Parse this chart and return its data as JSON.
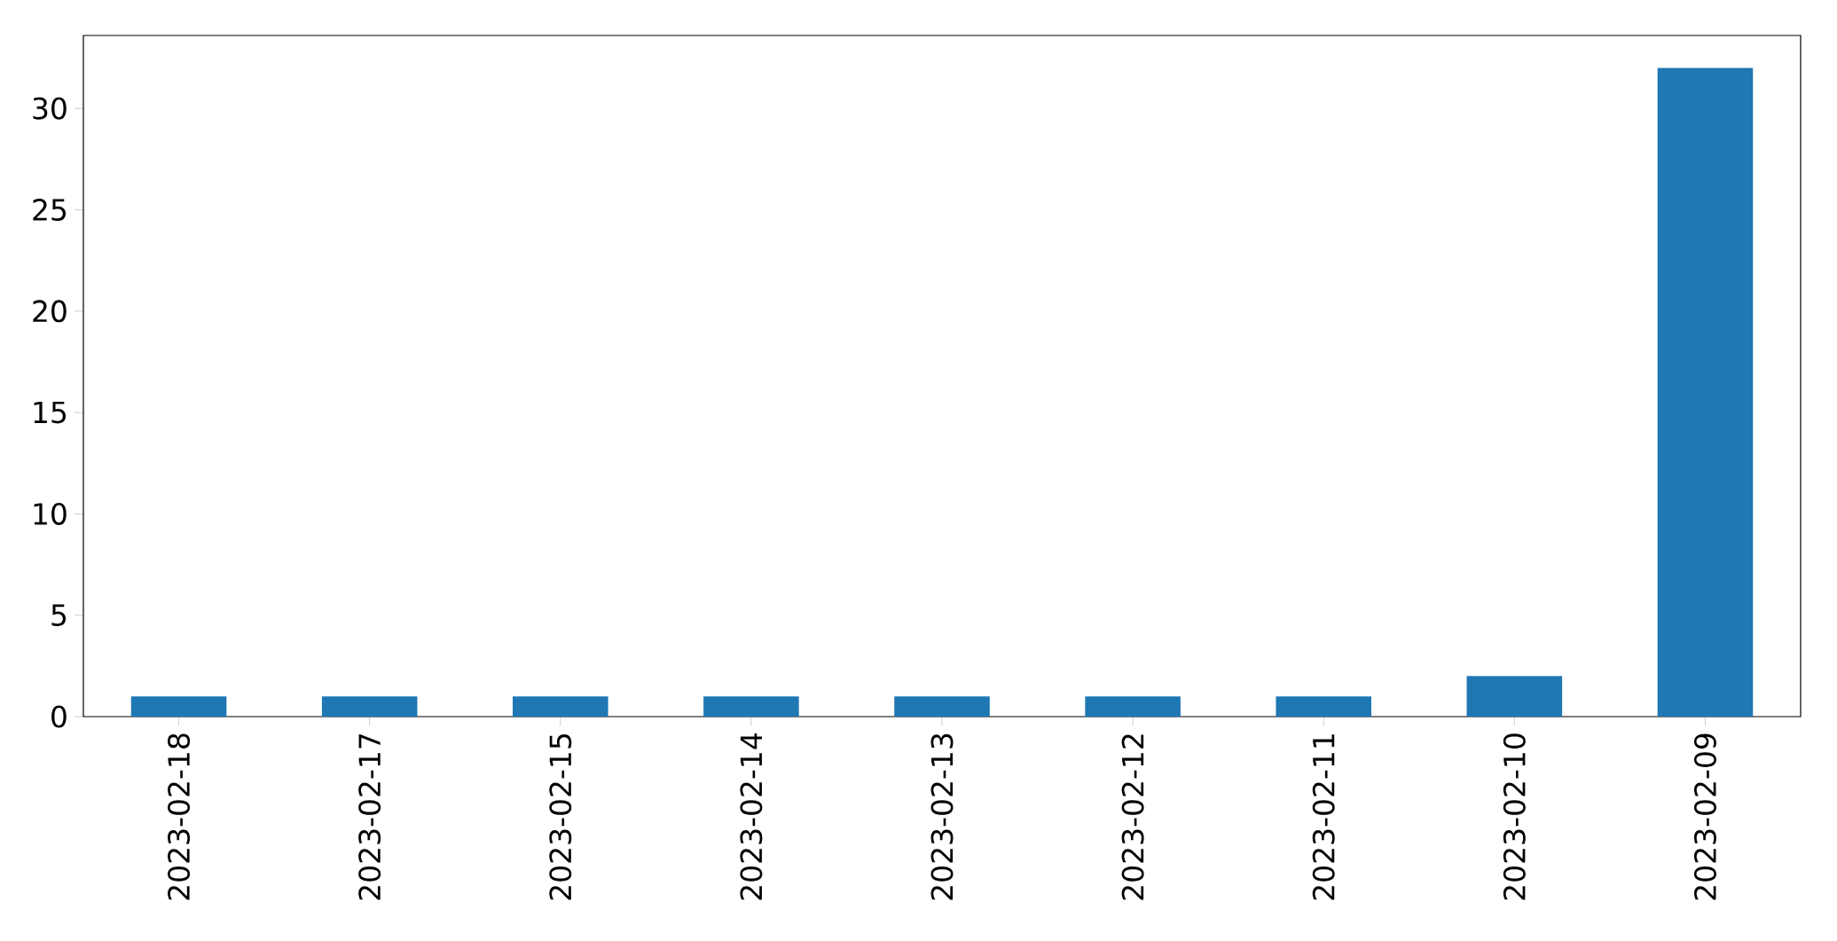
{
  "chart_data": {
    "type": "bar",
    "categories": [
      "2023-02-18",
      "2023-02-17",
      "2023-02-15",
      "2023-02-14",
      "2023-02-13",
      "2023-02-12",
      "2023-02-11",
      "2023-02-10",
      "2023-02-09"
    ],
    "values": [
      1,
      1,
      1,
      1,
      1,
      1,
      1,
      2,
      32
    ],
    "color": "#1f77b4",
    "ylim": [
      0,
      33.6
    ],
    "yticks": [
      0,
      5,
      10,
      15,
      20,
      25,
      30
    ],
    "grid": false
  }
}
